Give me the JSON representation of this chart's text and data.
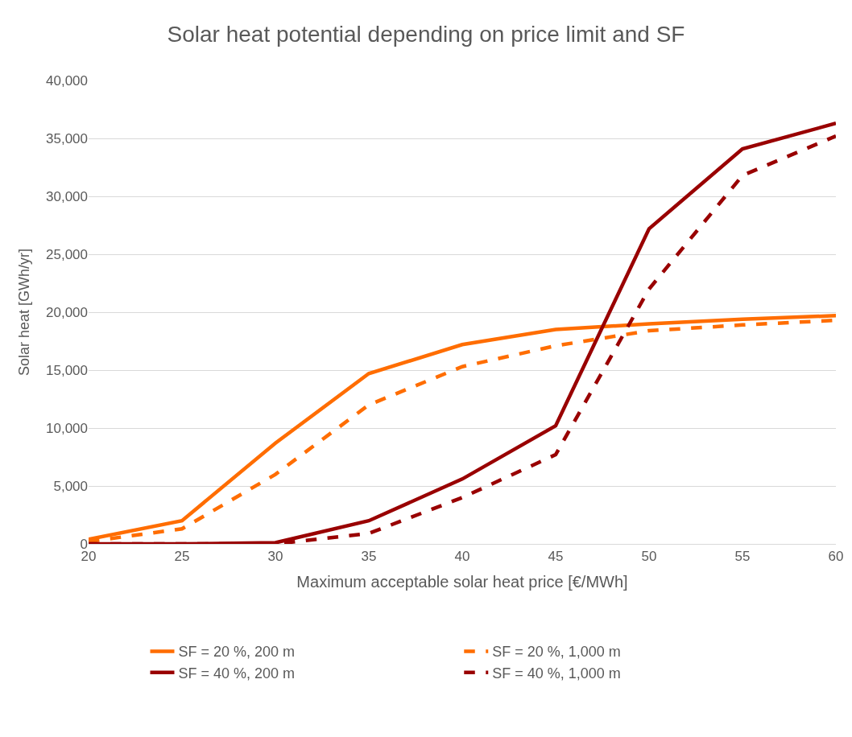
{
  "chart_data": {
    "type": "line",
    "title": "Solar heat potential depending on price limit and SF",
    "xlabel": "Maximum acceptable solar heat price [€/MWh]",
    "ylabel": "Solar heat [GWh/yr]",
    "x": [
      20,
      25,
      30,
      35,
      40,
      45,
      50,
      55,
      60
    ],
    "series": [
      {
        "name": "SF = 20 %, 200 m",
        "color": "#ff6d00",
        "line_style": "solid",
        "values": [
          400,
          2000,
          8700,
          14700,
          17200,
          18500,
          19000,
          19400,
          19700
        ]
      },
      {
        "name": "SF = 20 %, 1,000 m",
        "color": "#ff6d00",
        "line_style": "dashed",
        "values": [
          200,
          1300,
          6000,
          12000,
          15300,
          17100,
          18400,
          18900,
          19300
        ]
      },
      {
        "name": "SF = 40 %, 200 m",
        "color": "#990000",
        "line_style": "solid",
        "values": [
          0,
          0,
          100,
          2000,
          5600,
          10200,
          27200,
          34100,
          36300
        ]
      },
      {
        "name": "SF = 40 %, 1,000 m",
        "color": "#990000",
        "line_style": "dashed",
        "values": [
          0,
          0,
          0,
          900,
          4000,
          7700,
          22000,
          31800,
          35200
        ]
      }
    ],
    "xlim": [
      20,
      60
    ],
    "xticks": [
      20,
      25,
      30,
      35,
      40,
      45,
      50,
      55,
      60
    ],
    "ylim": [
      0,
      40000
    ],
    "yticks": [
      {
        "value": 0,
        "label": "0"
      },
      {
        "value": 5000,
        "label": "5,000"
      },
      {
        "value": 10000,
        "label": "10,000"
      },
      {
        "value": 15000,
        "label": "15,000"
      },
      {
        "value": 20000,
        "label": "20,000"
      },
      {
        "value": 25000,
        "label": "25,000"
      },
      {
        "value": 30000,
        "label": "30,000"
      },
      {
        "value": 35000,
        "label": "35,000"
      },
      {
        "value": 40000,
        "label": "40,000"
      }
    ],
    "grid": "y",
    "legend": "bottom",
    "marker": "none"
  }
}
